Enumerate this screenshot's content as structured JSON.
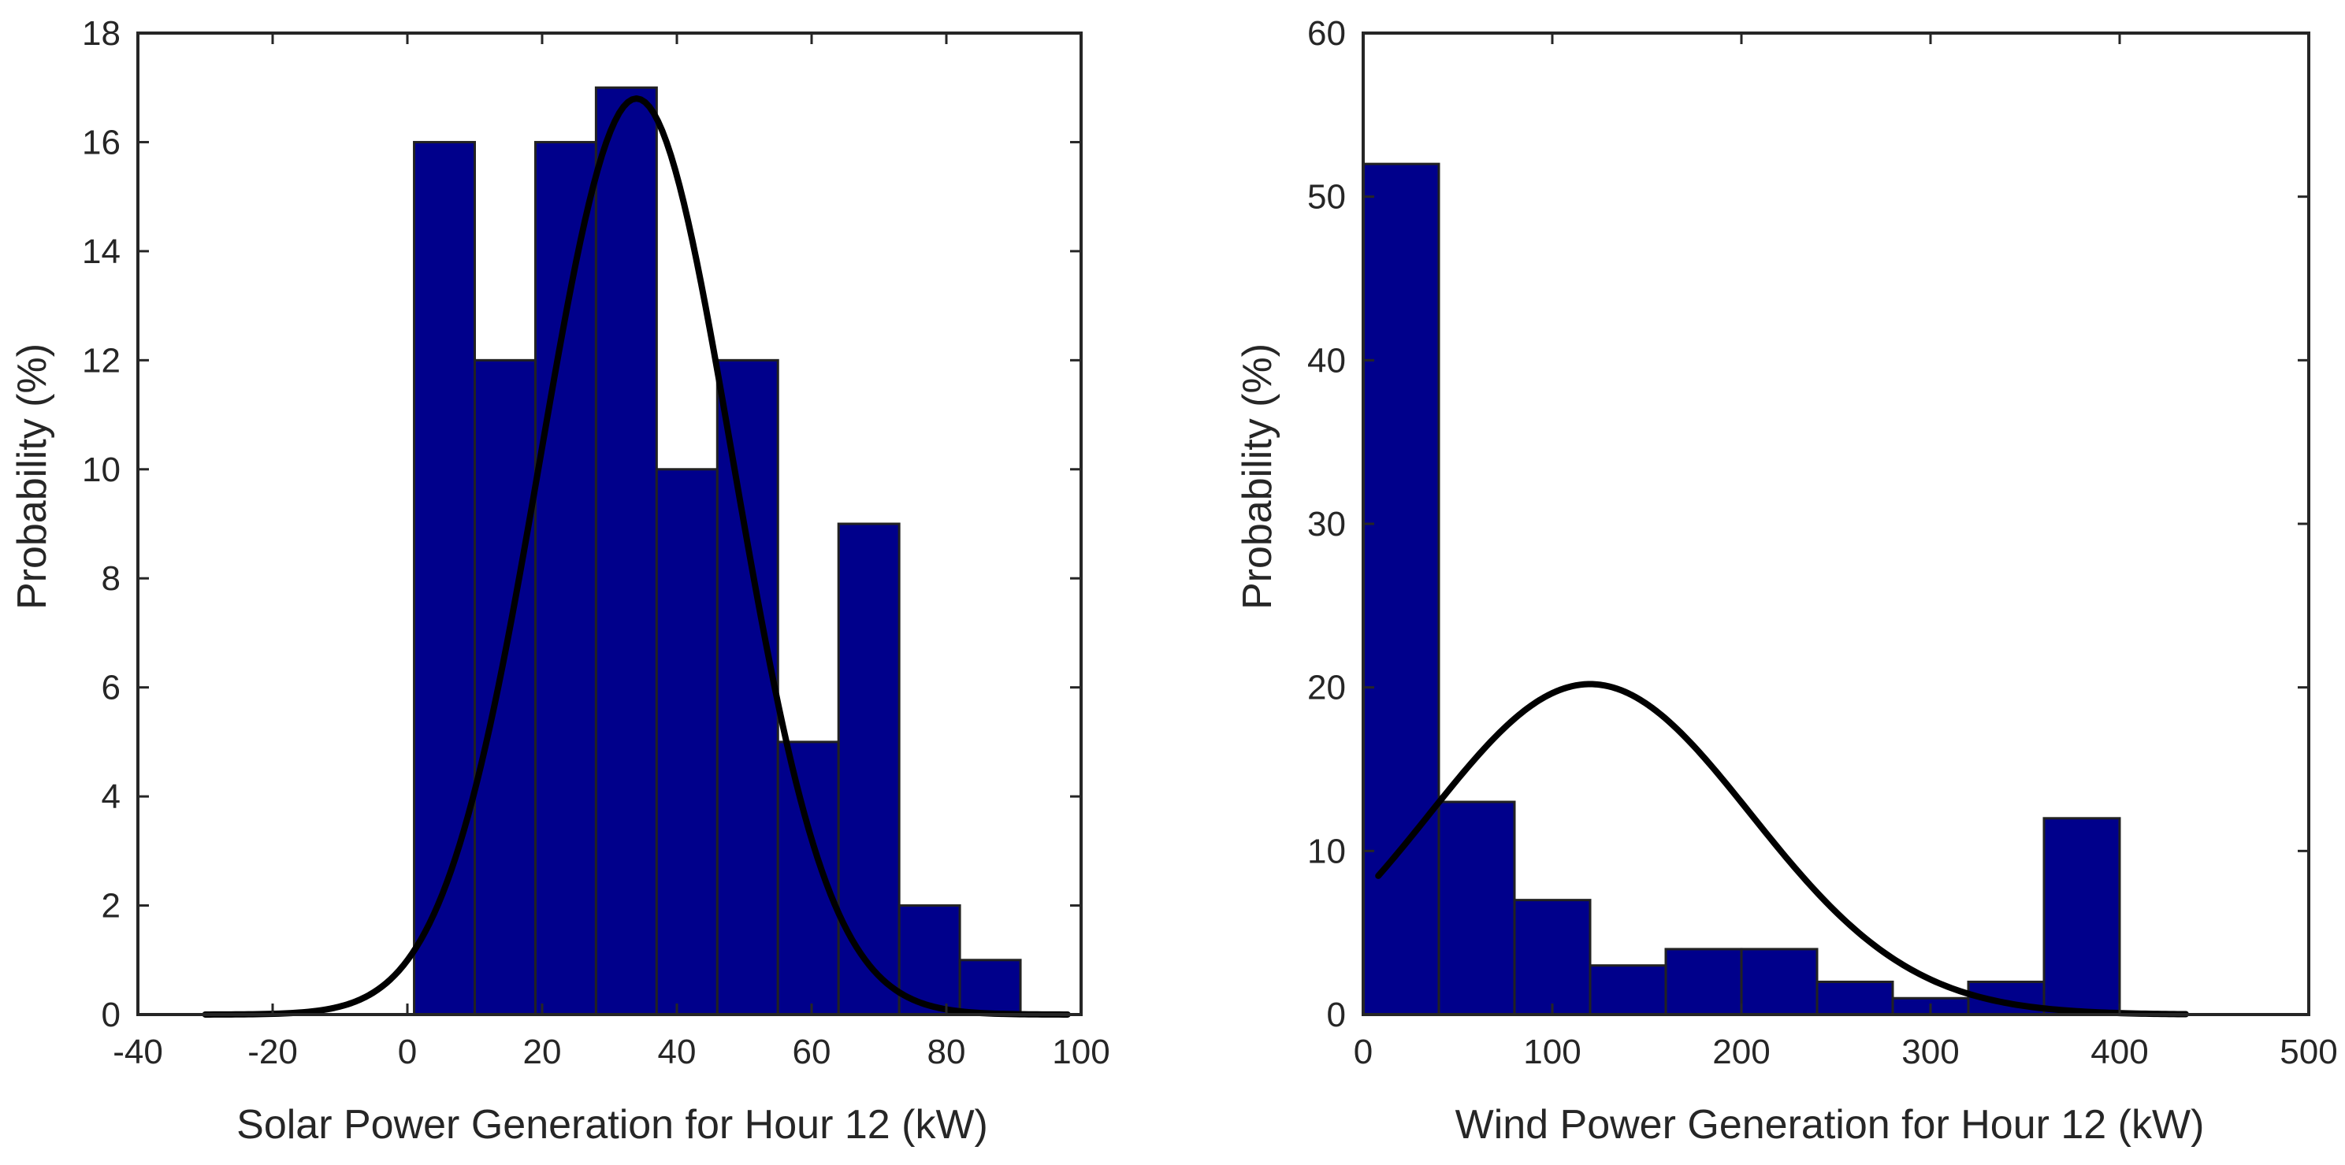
{
  "chart_data": [
    {
      "type": "histogram",
      "title": "",
      "xlabel": "Solar Power Generation for Hour 12 (kW)",
      "ylabel": "Probability (%)",
      "xlim": [
        -40,
        100
      ],
      "ylim": [
        0,
        18
      ],
      "xticks": [
        -40,
        -20,
        0,
        20,
        40,
        60,
        80,
        100
      ],
      "yticks": [
        0,
        2,
        4,
        6,
        8,
        10,
        12,
        14,
        16,
        18
      ],
      "bin_edges": [
        1,
        10,
        19,
        28,
        37,
        46,
        55,
        64,
        73,
        82,
        91
      ],
      "values": [
        16,
        12,
        16,
        17,
        10,
        12,
        5,
        9,
        2,
        1
      ],
      "bar_color": "#00008b",
      "fit": {
        "type": "normal",
        "mean": 34,
        "std": 14.3,
        "peak": 16.8,
        "range": [
          -30,
          98
        ],
        "color": "#000000"
      }
    },
    {
      "type": "histogram",
      "title": "",
      "xlabel": "Wind Power Generation for Hour 12 (kW)",
      "ylabel": "Probability (%)",
      "xlim": [
        0,
        500
      ],
      "ylim": [
        0,
        60
      ],
      "xticks": [
        0,
        100,
        200,
        300,
        400,
        500
      ],
      "yticks": [
        0,
        10,
        20,
        30,
        40,
        50,
        60
      ],
      "bin_edges": [
        0,
        40,
        80,
        120,
        160,
        200,
        240,
        280,
        320,
        360,
        400
      ],
      "values": [
        52,
        13,
        7,
        3,
        4,
        4,
        2,
        1,
        2,
        12
      ],
      "bar_color": "#00008b",
      "fit": {
        "type": "normal",
        "mean": 120,
        "std": 85,
        "peak": 20.2,
        "range": [
          8,
          435
        ],
        "color": "#000000"
      }
    }
  ]
}
